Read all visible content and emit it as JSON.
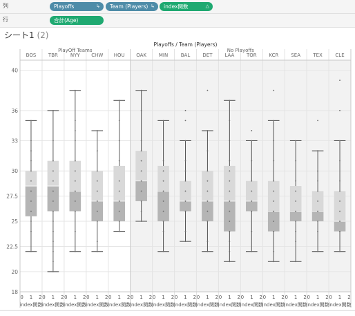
{
  "shelves": {
    "columns": {
      "label": "列",
      "pills": [
        "Playoffs",
        "Team (Players)",
        "index関数"
      ]
    },
    "rows": {
      "label": "行",
      "pills": [
        "合計(Age)"
      ]
    }
  },
  "sheet": {
    "title": "シート1",
    "suffix": "(2)"
  },
  "colors": {
    "accent_blue": "#4e8ca8",
    "accent_green": "#1fa971",
    "box_upper": "#d9d9d9",
    "box_lower": "#b5b5b5",
    "panel_no_playoffs": "#f2f2f2"
  },
  "chart_data": {
    "type": "box",
    "title": "Playoffs / Team (Players)",
    "groups": [
      {
        "name": "PlayOff Teams",
        "teams": [
          "BOS",
          "TBR",
          "NYY",
          "CHW",
          "HOU"
        ]
      },
      {
        "name": "No Playoffs",
        "teams": [
          "OAK",
          "MIN",
          "BAL",
          "DET",
          "LAA",
          "TOR",
          "KCR",
          "SEA",
          "TEX",
          "CLE"
        ]
      }
    ],
    "ylabel": "",
    "xlabel": "index関数",
    "x_ticks": [
      "0",
      "1",
      "2"
    ],
    "ylim": [
      18,
      41
    ],
    "y_ticks": [
      18,
      20,
      22.5,
      25,
      27.5,
      30,
      33,
      36,
      40
    ],
    "boxes": [
      {
        "team": "BOS",
        "min": 22,
        "q1": 25.5,
        "median": 28.5,
        "q3": 30,
        "max": 35
      },
      {
        "team": "TBR",
        "min": 20,
        "q1": 26,
        "median": 28.5,
        "q3": 31,
        "max": 36
      },
      {
        "team": "NYY",
        "min": 22,
        "q1": 26,
        "median": 28,
        "q3": 31,
        "max": 38
      },
      {
        "team": "CHW",
        "min": 22,
        "q1": 25,
        "median": 27,
        "q3": 30,
        "max": 34
      },
      {
        "team": "HOU",
        "min": 24,
        "q1": 25,
        "median": 27,
        "q3": 30.5,
        "max": 37
      },
      {
        "team": "OAK",
        "min": 25,
        "q1": 27,
        "median": 29,
        "q3": 32,
        "max": 38
      },
      {
        "team": "MIN",
        "min": 22,
        "q1": 25,
        "median": 28,
        "q3": 30.5,
        "max": 35
      },
      {
        "team": "BAL",
        "min": 23,
        "q1": 26,
        "median": 27,
        "q3": 29,
        "max": 33
      },
      {
        "team": "DET",
        "min": 22,
        "q1": 25,
        "median": 27,
        "q3": 30,
        "max": 34
      },
      {
        "team": "LAA",
        "min": 21,
        "q1": 24,
        "median": 27,
        "q3": 30.5,
        "max": 37
      },
      {
        "team": "TOR",
        "min": 22,
        "q1": 26,
        "median": 27,
        "q3": 29,
        "max": 33
      },
      {
        "team": "KCR",
        "min": 21,
        "q1": 24,
        "median": 26,
        "q3": 29,
        "max": 35
      },
      {
        "team": "SEA",
        "min": 21,
        "q1": 25,
        "median": 26,
        "q3": 28.5,
        "max": 33
      },
      {
        "team": "TEX",
        "min": 22,
        "q1": 25,
        "median": 26,
        "q3": 28,
        "max": 32
      },
      {
        "team": "CLE",
        "min": 22,
        "q1": 24,
        "median": 25,
        "q3": 28,
        "max": 33
      }
    ],
    "points": [
      [
        22,
        24,
        25,
        26,
        27,
        28,
        29,
        30,
        31,
        32,
        33,
        35
      ],
      [
        20,
        21,
        22,
        23,
        24,
        25,
        26,
        27,
        28,
        29,
        30,
        31,
        33,
        36
      ],
      [
        22,
        24,
        26,
        27,
        28,
        29,
        30,
        31,
        33,
        34,
        35,
        38
      ],
      [
        22,
        23,
        25,
        26,
        27,
        28,
        29,
        30,
        32,
        34
      ],
      [
        24,
        25,
        26,
        27,
        28,
        29,
        31,
        33,
        35,
        37
      ],
      [
        25,
        26,
        27,
        28,
        29,
        30,
        31,
        32,
        33,
        36,
        38
      ],
      [
        22,
        24,
        25,
        26,
        27,
        28,
        29,
        30,
        31,
        33,
        35
      ],
      [
        23,
        24,
        26,
        27,
        28,
        29,
        30,
        31,
        33,
        35,
        36
      ],
      [
        22,
        23,
        25,
        26,
        27,
        28,
        29,
        30,
        32,
        34,
        38
      ],
      [
        21,
        22,
        23,
        24,
        25,
        26,
        27,
        28,
        29,
        30,
        31,
        33,
        35,
        37
      ],
      [
        22,
        24,
        26,
        27,
        28,
        29,
        31,
        33,
        34
      ],
      [
        21,
        22,
        24,
        25,
        26,
        27,
        28,
        29,
        31,
        33,
        35,
        38
      ],
      [
        21,
        23,
        24,
        25,
        26,
        27,
        28,
        29,
        31,
        33
      ],
      [
        22,
        24,
        25,
        26,
        27,
        28,
        29,
        30,
        32,
        35
      ],
      [
        22,
        24,
        25,
        26,
        27,
        28,
        29,
        31,
        33,
        36,
        39
      ]
    ],
    "grid": true,
    "legend": "none"
  }
}
